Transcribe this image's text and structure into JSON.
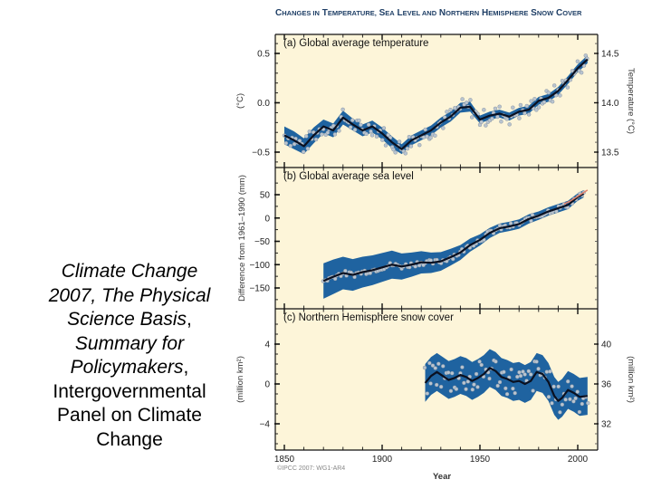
{
  "caption": {
    "line1": "Climate Change",
    "line2": "2007, The Physical",
    "line3a": "Science Basis",
    "line3b": ",",
    "line4": "Summary for",
    "line5a": "Policymakers",
    "line5b": ",",
    "line6": "Intergovernmental",
    "line7": "Panel on Climate",
    "line8": "Change"
  },
  "figure": {
    "title": "Changes in Temperature, Sea Level and Northern Hemisphere Snow Cover",
    "xlabel": "Year",
    "credit": "©IPCC 2007: WG1-AR4",
    "x_ticks": [
      "1850",
      "1900",
      "1950",
      "2000"
    ],
    "colors": {
      "plot_bg": "#fdf5d9",
      "uncertainty_band": "#1f63a0",
      "smooth_line": "#0a1020",
      "annual_points": "#b9c4d0",
      "satellite_line": "#e0806a",
      "title": "#1f3f66"
    }
  },
  "chart_data": [
    {
      "type": "line",
      "panel": "a",
      "title": "(a) Global average temperature",
      "xlabel": "Year",
      "ylabel": "(°C)",
      "ylabel_right": "Temperature (°C)",
      "xlim": [
        1845,
        2012
      ],
      "ylim": [
        -0.68,
        0.68
      ],
      "y_ticks": [
        "0.5",
        "0.0",
        "−0.5"
      ],
      "y_ticks_right": [
        "14.5",
        "14.0",
        "13.5"
      ],
      "smooth": {
        "x": [
          1850,
          1855,
          1860,
          1865,
          1870,
          1875,
          1880,
          1885,
          1890,
          1895,
          1900,
          1905,
          1910,
          1915,
          1920,
          1925,
          1930,
          1935,
          1940,
          1945,
          1950,
          1955,
          1960,
          1965,
          1970,
          1975,
          1980,
          1985,
          1990,
          1995,
          2000,
          2005
        ],
        "y": [
          -0.33,
          -0.38,
          -0.44,
          -0.33,
          -0.24,
          -0.28,
          -0.15,
          -0.22,
          -0.28,
          -0.24,
          -0.31,
          -0.4,
          -0.47,
          -0.38,
          -0.33,
          -0.28,
          -0.2,
          -0.14,
          -0.05,
          -0.04,
          -0.17,
          -0.13,
          -0.11,
          -0.14,
          -0.09,
          -0.07,
          0.02,
          0.05,
          0.12,
          0.23,
          0.35,
          0.44
        ]
      },
      "band_halfwidth": [
        0.09,
        0.09,
        0.08,
        0.08,
        0.07,
        0.07,
        0.07,
        0.06,
        0.06,
        0.06,
        0.06,
        0.06,
        0.05,
        0.05,
        0.05,
        0.05,
        0.05,
        0.05,
        0.05,
        0.05,
        0.04,
        0.04,
        0.04,
        0.04,
        0.04,
        0.04,
        0.04,
        0.04,
        0.04,
        0.04,
        0.04,
        0.04
      ]
    },
    {
      "type": "line",
      "panel": "b",
      "title": "(b) Global average sea level",
      "xlabel": "Year",
      "ylabel": "Difference from 1961–1990 (mm)",
      "xlim": [
        1845,
        2012
      ],
      "ylim": [
        -198,
        100
      ],
      "y_ticks": [
        "50",
        "0",
        "−50",
        "−100",
        "−150"
      ],
      "smooth": {
        "x": [
          1870,
          1875,
          1880,
          1885,
          1890,
          1895,
          1900,
          1905,
          1910,
          1915,
          1920,
          1925,
          1930,
          1935,
          1940,
          1945,
          1950,
          1955,
          1960,
          1965,
          1970,
          1975,
          1980,
          1985,
          1990,
          1995,
          2000,
          2003
        ],
        "y": [
          -135,
          -126,
          -118,
          -122,
          -116,
          -112,
          -106,
          -100,
          -104,
          -100,
          -95,
          -96,
          -93,
          -84,
          -74,
          -58,
          -47,
          -32,
          -22,
          -18,
          -13,
          -2,
          5,
          14,
          21,
          28,
          45,
          52
        ]
      },
      "band_halfwidth": [
        38,
        37,
        35,
        34,
        33,
        32,
        31,
        30,
        28,
        26,
        24,
        22,
        20,
        18,
        16,
        14,
        12,
        11,
        10,
        10,
        10,
        10,
        9,
        9,
        9,
        9,
        8,
        8
      ],
      "satellite": {
        "x": [
          1993,
          1996,
          1999,
          2002,
          2005
        ],
        "y": [
          30,
          36,
          44,
          52,
          60
        ]
      }
    },
    {
      "type": "line",
      "panel": "c",
      "title": "(c) Northern Hemisphere snow cover",
      "xlabel": "Year",
      "ylabel": "(million km²)",
      "ylabel_right": "(million km²)",
      "xlim": [
        1845,
        2012
      ],
      "ylim": [
        -6.6,
        7
      ],
      "y_ticks": [
        "4",
        "0",
        "−4"
      ],
      "y_ticks_right": [
        "40",
        "36",
        "32"
      ],
      "smooth": {
        "x": [
          1922,
          1925,
          1928,
          1931,
          1934,
          1937,
          1940,
          1943,
          1946,
          1949,
          1952,
          1955,
          1958,
          1961,
          1964,
          1967,
          1970,
          1973,
          1976,
          1979,
          1982,
          1985,
          1988,
          1990,
          1992,
          1995,
          1998,
          2001,
          2005
        ],
        "y": [
          0.1,
          0.8,
          1.2,
          0.8,
          0.4,
          0.6,
          0.9,
          0.7,
          0.3,
          0.6,
          1.0,
          1.6,
          1.3,
          0.7,
          0.5,
          0.2,
          0.3,
          0.0,
          0.3,
          1.2,
          1.0,
          0.2,
          -1.2,
          -1.7,
          -1.4,
          -0.6,
          -0.9,
          -1.3,
          -1.2
        ]
      },
      "band_halfwidth": [
        1.9,
        1.9,
        1.9,
        1.9,
        1.9,
        1.9,
        1.9,
        1.9,
        1.9,
        1.9,
        1.9,
        1.9,
        1.9,
        1.9,
        1.9,
        1.9,
        1.9,
        1.9,
        1.9,
        1.9,
        1.9,
        1.9,
        1.9,
        1.9,
        1.9,
        1.9,
        1.9,
        1.9,
        1.9
      ]
    }
  ]
}
